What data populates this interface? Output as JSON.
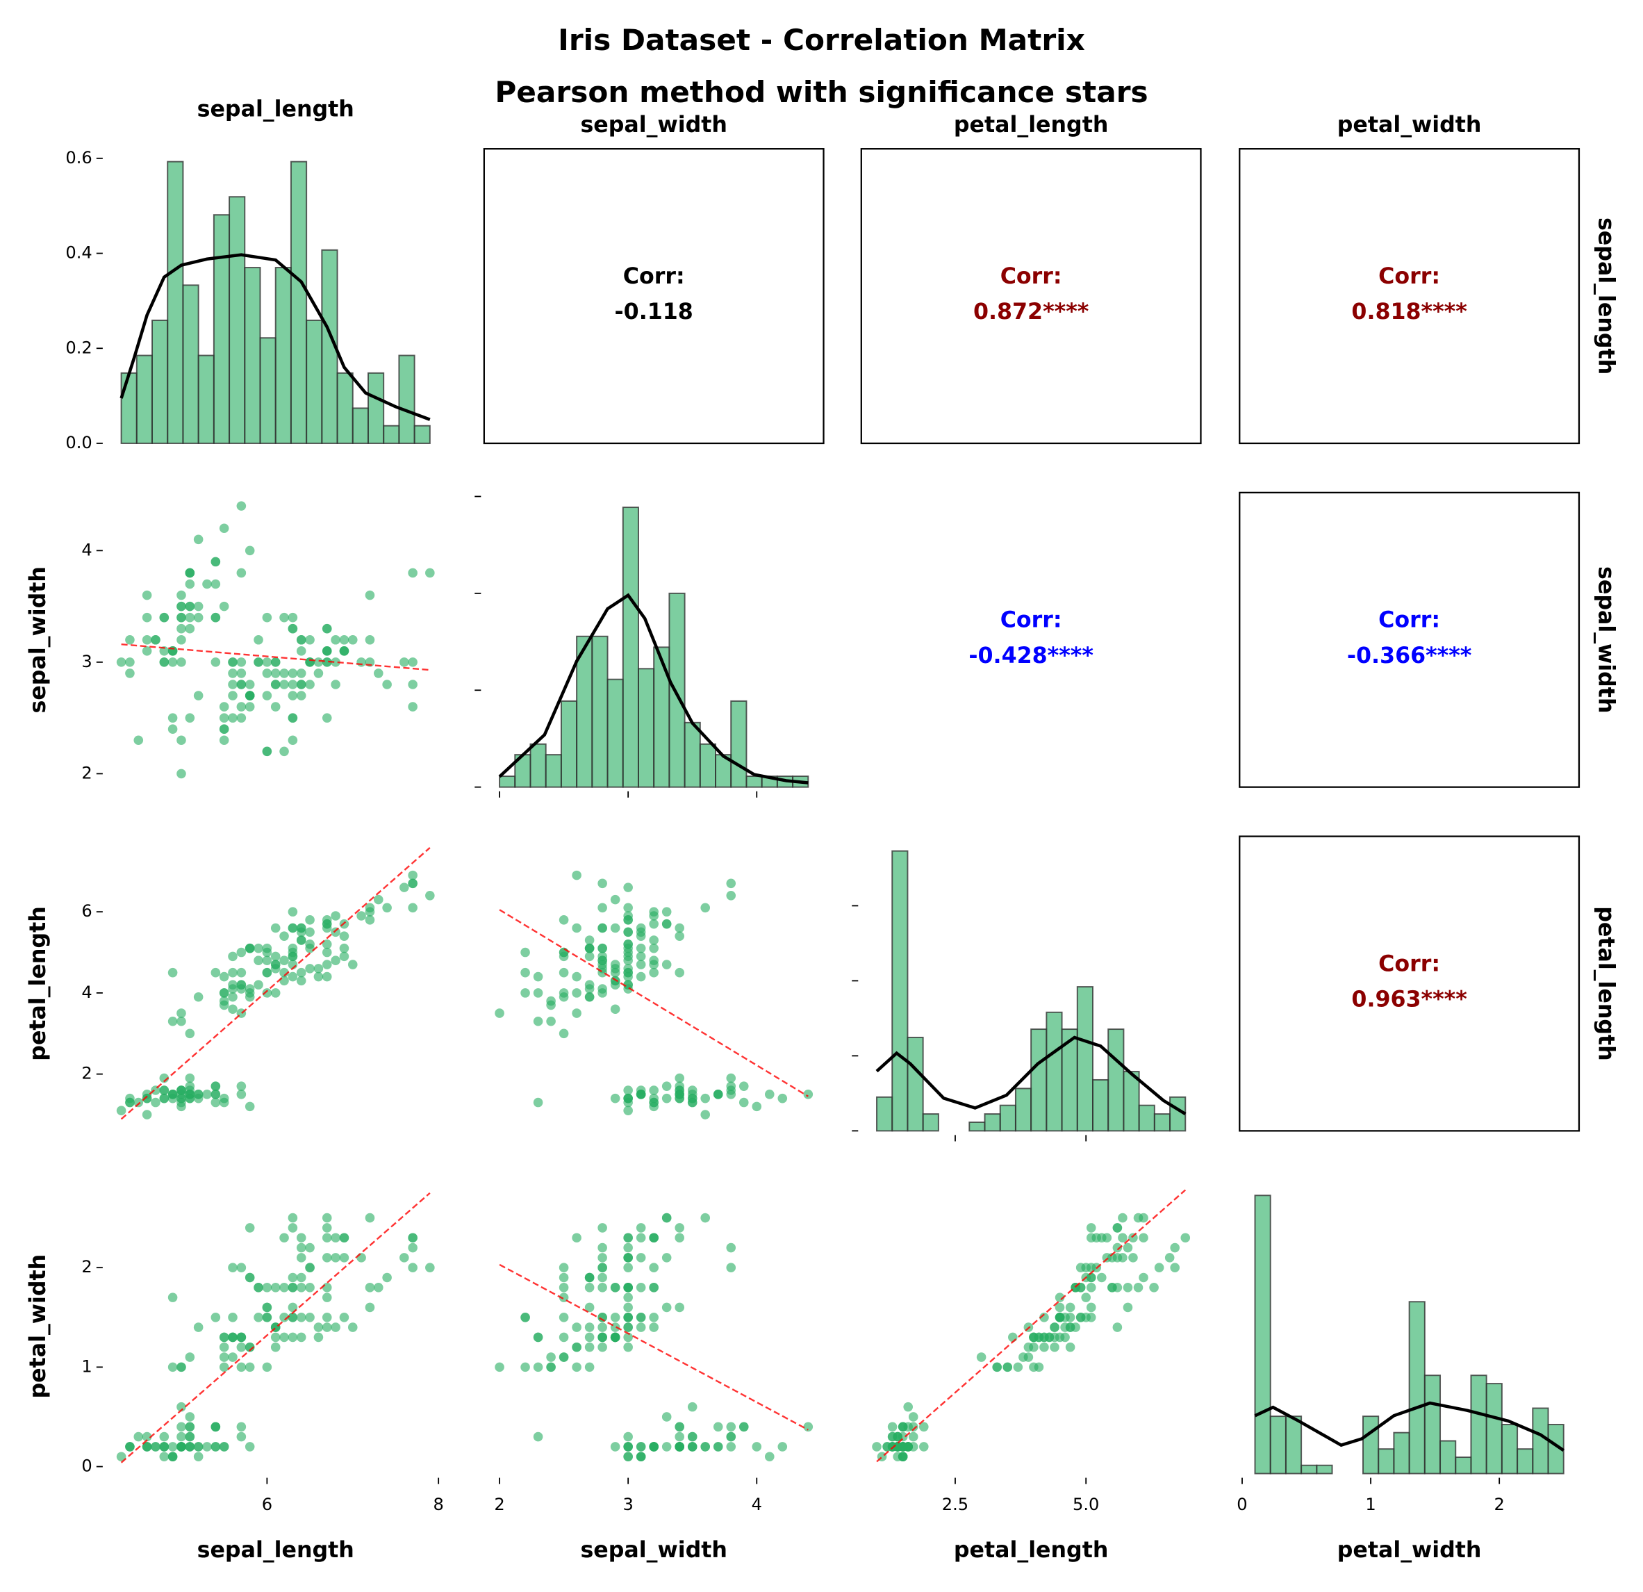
{
  "chart_data": {
    "type": "pairplot",
    "title": "Iris Dataset - Correlation Matrix",
    "subtitle": "Pearson method with significance stars",
    "point_color": "#27ae60",
    "hist_color": "#27ae60",
    "kde_color": "#000000",
    "reg_color": "#ff0000",
    "corr_label": "Corr:",
    "variables": [
      {
        "name": "sepal_length",
        "xlim": [
          4.12,
          8.08
        ],
        "xticks": [
          6,
          8
        ],
        "data": [
          5.1,
          4.9,
          4.7,
          4.6,
          5.0,
          5.4,
          4.6,
          5.0,
          4.4,
          4.9,
          5.4,
          4.8,
          4.8,
          4.3,
          5.8,
          5.7,
          5.4,
          5.1,
          5.7,
          5.1,
          5.4,
          5.1,
          4.6,
          5.1,
          4.8,
          5.0,
          5.0,
          5.2,
          5.2,
          4.7,
          4.8,
          5.4,
          5.2,
          5.5,
          4.9,
          5.0,
          5.5,
          4.9,
          4.4,
          5.1,
          5.0,
          4.5,
          4.4,
          5.0,
          5.1,
          4.8,
          5.1,
          4.6,
          5.3,
          5.0,
          7.0,
          6.4,
          6.9,
          5.5,
          6.5,
          5.7,
          6.3,
          4.9,
          6.6,
          5.2,
          5.0,
          5.9,
          6.0,
          6.1,
          5.6,
          6.7,
          5.6,
          5.8,
          6.2,
          5.6,
          5.9,
          6.1,
          6.3,
          6.1,
          6.4,
          6.6,
          6.8,
          6.7,
          6.0,
          5.7,
          5.5,
          5.5,
          5.8,
          6.0,
          5.4,
          6.0,
          6.7,
          6.3,
          5.6,
          5.5,
          5.5,
          6.1,
          5.8,
          5.0,
          5.6,
          5.7,
          5.7,
          6.2,
          5.1,
          5.7,
          6.3,
          5.8,
          7.1,
          6.3,
          6.5,
          7.6,
          4.9,
          7.3,
          6.7,
          7.2,
          6.5,
          6.4,
          6.8,
          5.7,
          5.8,
          6.4,
          6.5,
          7.7,
          7.7,
          6.0,
          6.9,
          5.6,
          7.7,
          6.3,
          6.7,
          7.2,
          6.2,
          6.1,
          6.4,
          7.2,
          7.4,
          7.9,
          6.4,
          6.3,
          6.1,
          7.7,
          6.3,
          6.4,
          6.0,
          6.9,
          6.7,
          6.9,
          5.8,
          6.8,
          6.7,
          6.7,
          6.3,
          6.5,
          6.2,
          5.9
        ],
        "hist": {
          "bins": [
            4.3,
            4.48,
            4.66,
            4.84,
            5.02,
            5.2,
            5.38,
            5.56,
            5.74,
            5.92,
            6.1,
            6.28,
            6.46,
            6.64,
            6.82,
            7.0,
            7.18,
            7.36,
            7.54,
            7.72,
            7.9
          ],
          "values": [
            0.148,
            0.185,
            0.259,
            0.593,
            0.333,
            0.185,
            0.481,
            0.519,
            0.37,
            0.222,
            0.37,
            0.593,
            0.259,
            0.407,
            0.148,
            0.074,
            0.148,
            0.037,
            0.185,
            0.037
          ],
          "ylim": [
            0,
            0.62
          ],
          "yticks": [
            {
              "value": 0,
              "label": "0.0"
            },
            0.2,
            0.4,
            0.6
          ]
        },
        "kde": {
          "x": [
            4.3,
            4.45,
            4.6,
            4.8,
            5.0,
            5.3,
            5.7,
            6.1,
            6.4,
            6.7,
            6.9,
            7.15,
            7.5,
            7.9
          ],
          "y": [
            0.095,
            0.18,
            0.27,
            0.35,
            0.375,
            0.388,
            0.397,
            0.386,
            0.34,
            0.245,
            0.16,
            0.106,
            0.077,
            0.05
          ]
        }
      },
      {
        "name": "sepal_width",
        "xlim": [
          1.88,
          4.52
        ],
        "xticks": [
          2,
          3,
          4
        ],
        "ylim": [
          1.88,
          4.52
        ],
        "yticks": [
          2,
          3,
          4
        ],
        "data": [
          3.5,
          3.0,
          3.2,
          3.1,
          3.6,
          3.9,
          3.4,
          3.4,
          2.9,
          3.1,
          3.7,
          3.4,
          3.0,
          3.0,
          4.0,
          4.4,
          3.9,
          3.5,
          3.8,
          3.8,
          3.4,
          3.7,
          3.6,
          3.3,
          3.4,
          3.0,
          3.4,
          3.5,
          3.4,
          3.2,
          3.1,
          3.4,
          4.1,
          4.2,
          3.1,
          3.2,
          3.5,
          3.1,
          3.0,
          3.4,
          3.5,
          2.3,
          3.2,
          3.5,
          3.8,
          3.0,
          3.8,
          3.2,
          3.7,
          3.3,
          3.2,
          3.2,
          3.1,
          2.3,
          2.8,
          2.8,
          3.3,
          2.4,
          2.9,
          2.7,
          2.0,
          3.0,
          2.2,
          2.9,
          2.9,
          3.1,
          3.0,
          2.7,
          2.2,
          2.5,
          3.2,
          2.8,
          2.5,
          2.8,
          2.9,
          3.0,
          2.8,
          3.0,
          2.9,
          2.6,
          2.4,
          2.4,
          2.7,
          2.7,
          3.0,
          3.4,
          3.1,
          2.3,
          3.0,
          2.5,
          2.6,
          3.0,
          2.6,
          2.3,
          2.7,
          3.0,
          2.9,
          2.9,
          2.5,
          2.8,
          3.3,
          2.7,
          3.0,
          2.9,
          3.0,
          3.0,
          2.5,
          2.9,
          2.5,
          3.6,
          3.2,
          2.7,
          3.0,
          2.5,
          2.8,
          3.2,
          3.0,
          3.8,
          2.6,
          2.2,
          3.2,
          2.8,
          2.8,
          2.7,
          3.3,
          3.2,
          2.8,
          3.0,
          2.8,
          3.0,
          2.8,
          3.8,
          2.8,
          2.8,
          2.6,
          3.0,
          3.4,
          3.1,
          3.0,
          3.1,
          3.1,
          3.1,
          2.7,
          3.2,
          3.3,
          3.0,
          2.5,
          3.0,
          3.4,
          3.0
        ],
        "hist": {
          "bins": [
            2.0,
            2.12,
            2.24,
            2.36,
            2.48,
            2.6,
            2.72,
            2.84,
            2.96,
            3.08,
            3.2,
            3.32,
            3.44,
            3.56,
            3.68,
            3.8,
            3.92,
            4.04,
            4.16,
            4.28,
            4.4
          ],
          "values": [
            0.056,
            0.167,
            0.222,
            0.167,
            0.444,
            0.778,
            0.778,
            0.556,
            1.444,
            0.611,
            0.722,
            1.0,
            0.333,
            0.222,
            0.167,
            0.444,
            0.056,
            0.056,
            0.056,
            0.056
          ],
          "ylim": [
            0,
            1.52
          ],
          "yticks": [
            0,
            0.5,
            1,
            1.5
          ]
        },
        "kde": {
          "x": [
            2.0,
            2.35,
            2.6,
            2.84,
            3.0,
            3.13,
            3.33,
            3.5,
            3.74,
            3.98,
            4.23,
            4.4
          ],
          "y": [
            0.054,
            0.27,
            0.65,
            0.92,
            0.99,
            0.87,
            0.54,
            0.33,
            0.16,
            0.065,
            0.033,
            0.022
          ]
        }
      },
      {
        "name": "petal_length",
        "xlim": [
          0.705,
          7.195
        ],
        "xticks": [
          2.5,
          {
            "value": 5,
            "label": "5.0"
          }
        ],
        "ylim": [
          0.6,
          7.86
        ],
        "yticks": [
          2,
          4,
          6
        ],
        "data": [
          1.4,
          1.4,
          1.3,
          1.5,
          1.4,
          1.7,
          1.4,
          1.5,
          1.4,
          1.5,
          1.5,
          1.6,
          1.4,
          1.1,
          1.2,
          1.5,
          1.3,
          1.4,
          1.7,
          1.5,
          1.7,
          1.5,
          1.0,
          1.7,
          1.9,
          1.6,
          1.6,
          1.5,
          1.4,
          1.6,
          1.6,
          1.5,
          1.5,
          1.4,
          1.5,
          1.2,
          1.3,
          1.5,
          1.3,
          1.5,
          1.3,
          1.3,
          1.3,
          1.6,
          1.9,
          1.4,
          1.6,
          1.4,
          1.5,
          1.4,
          4.7,
          4.5,
          4.9,
          4.0,
          4.6,
          4.5,
          4.7,
          3.3,
          4.6,
          3.9,
          3.5,
          4.2,
          4.0,
          4.7,
          3.6,
          4.4,
          4.5,
          4.1,
          4.5,
          3.9,
          4.8,
          4.0,
          4.9,
          4.7,
          4.3,
          4.4,
          4.8,
          5.0,
          4.5,
          3.5,
          3.8,
          3.7,
          3.9,
          5.1,
          4.5,
          4.5,
          4.7,
          4.4,
          4.1,
          4.0,
          4.4,
          4.6,
          4.0,
          3.3,
          4.2,
          4.2,
          4.2,
          4.3,
          3.0,
          4.1,
          6.0,
          5.1,
          5.9,
          5.6,
          5.8,
          6.6,
          4.5,
          6.3,
          5.8,
          6.1,
          5.1,
          5.3,
          5.5,
          5.0,
          5.1,
          5.3,
          5.5,
          6.7,
          6.9,
          5.0,
          5.7,
          4.9,
          6.7,
          4.9,
          5.7,
          6.0,
          4.8,
          4.9,
          5.6,
          5.8,
          6.1,
          6.4,
          5.6,
          5.1,
          5.6,
          6.1,
          5.6,
          5.5,
          4.8,
          5.4,
          5.6,
          5.1,
          5.1,
          5.9,
          5.7,
          5.2,
          5.0,
          5.2,
          5.4,
          5.1
        ],
        "hist": {
          "bins": [
            1.0,
            1.295,
            1.59,
            1.885,
            2.18,
            2.475,
            2.77,
            3.065,
            3.36,
            3.655,
            3.95,
            4.245,
            4.54,
            4.835,
            5.13,
            5.425,
            5.72,
            6.015,
            6.31,
            6.605,
            6.9
          ],
          "values": [
            0.09,
            0.746,
            0.249,
            0.045,
            0,
            0,
            0.023,
            0.045,
            0.068,
            0.113,
            0.271,
            0.316,
            0.271,
            0.384,
            0.136,
            0.271,
            0.158,
            0.068,
            0.045,
            0.09
          ],
          "ylim": [
            0,
            0.785
          ],
          "yticks": [
            0,
            0.2,
            0.4,
            0.6
          ]
        },
        "kde": {
          "x": [
            1.0,
            1.38,
            1.64,
            2.28,
            2.88,
            3.48,
            4.08,
            4.78,
            5.28,
            5.88,
            6.48,
            6.9
          ],
          "y": [
            0.159,
            0.207,
            0.179,
            0.087,
            0.061,
            0.095,
            0.179,
            0.249,
            0.226,
            0.151,
            0.081,
            0.045
          ]
        }
      },
      {
        "name": "petal_width",
        "xlim": [
          -0.02,
          2.62
        ],
        "xticks": [
          0,
          1,
          2
        ],
        "ylim": [
          -0.07,
          2.89
        ],
        "yticks": [
          0,
          1,
          2
        ],
        "data": [
          0.2,
          0.2,
          0.2,
          0.2,
          0.2,
          0.4,
          0.3,
          0.2,
          0.2,
          0.1,
          0.2,
          0.2,
          0.1,
          0.1,
          0.2,
          0.4,
          0.4,
          0.3,
          0.3,
          0.3,
          0.2,
          0.4,
          0.2,
          0.5,
          0.2,
          0.2,
          0.4,
          0.2,
          0.2,
          0.2,
          0.2,
          0.4,
          0.1,
          0.2,
          0.1,
          0.2,
          0.2,
          0.1,
          0.2,
          0.2,
          0.3,
          0.3,
          0.2,
          0.6,
          0.4,
          0.3,
          0.2,
          0.2,
          0.2,
          0.2,
          1.4,
          1.5,
          1.5,
          1.3,
          1.5,
          1.3,
          1.6,
          1.0,
          1.3,
          1.4,
          1.0,
          1.5,
          1.0,
          1.4,
          1.3,
          1.4,
          1.5,
          1.0,
          1.5,
          1.1,
          1.8,
          1.3,
          1.5,
          1.2,
          1.3,
          1.4,
          1.4,
          1.7,
          1.5,
          1.0,
          1.1,
          1.0,
          1.2,
          1.6,
          1.5,
          1.6,
          1.5,
          1.3,
          1.3,
          1.3,
          1.2,
          1.4,
          1.2,
          1.0,
          1.3,
          1.2,
          1.3,
          1.3,
          1.1,
          1.3,
          2.5,
          1.9,
          2.1,
          1.8,
          2.2,
          2.1,
          1.7,
          1.8,
          1.8,
          2.5,
          2.0,
          1.9,
          2.1,
          2.0,
          2.4,
          2.3,
          1.8,
          2.2,
          2.3,
          1.5,
          2.3,
          2.0,
          2.0,
          1.8,
          2.1,
          1.8,
          1.8,
          1.8,
          2.1,
          1.6,
          1.9,
          2.0,
          2.2,
          1.5,
          1.4,
          2.3,
          2.4,
          1.8,
          1.8,
          2.1,
          2.4,
          2.3,
          1.9,
          2.3,
          2.5,
          2.3,
          1.9,
          2.0,
          2.3,
          1.8
        ],
        "hist": {
          "bins": [
            0.1,
            0.22,
            0.34,
            0.46,
            0.58,
            0.7,
            0.82,
            0.94,
            1.06,
            1.18,
            1.3,
            1.42,
            1.54,
            1.66,
            1.78,
            1.9,
            2.02,
            2.14,
            2.26,
            2.38,
            2.5
          ],
          "values": [
            1.889,
            0.389,
            0.389,
            0.056,
            0.056,
            0,
            0,
            0.389,
            0.167,
            0.278,
            1.167,
            0.667,
            0.222,
            0.111,
            0.667,
            0.611,
            0.333,
            0.167,
            0.444,
            0.333
          ],
          "ylim": [
            0,
            2.0
          ]
        },
        "kde": {
          "x": [
            0.1,
            0.24,
            0.44,
            0.77,
            0.93,
            1.18,
            1.46,
            1.75,
            2.07,
            2.32,
            2.5
          ],
          "y": [
            0.393,
            0.45,
            0.357,
            0.193,
            0.236,
            0.393,
            0.479,
            0.429,
            0.357,
            0.264,
            0.157
          ]
        }
      }
    ],
    "regressions": {
      "pairs": [
        [
          1,
          0
        ],
        [
          2,
          0
        ],
        [
          2,
          1
        ],
        [
          3,
          0
        ],
        [
          3,
          1
        ],
        [
          3,
          2
        ]
      ],
      "x": [
        [
          4.3,
          7.9
        ],
        [
          4.3,
          7.9
        ],
        [
          2.0,
          4.4
        ],
        [
          4.3,
          7.9
        ],
        [
          2.0,
          4.4
        ],
        [
          1.0,
          6.9
        ]
      ],
      "y": [
        [
          3.16,
          2.93
        ],
        [
          0.89,
          7.58
        ],
        [
          6.05,
          1.45
        ],
        [
          0.04,
          2.75
        ],
        [
          2.03,
          0.37
        ],
        [
          0.05,
          2.78
        ]
      ]
    },
    "correlations": {
      "pairs": [
        [
          0,
          1
        ],
        [
          0,
          2
        ],
        [
          0,
          3
        ],
        [
          1,
          2
        ],
        [
          1,
          3
        ],
        [
          2,
          3
        ]
      ],
      "values": [
        -0.118,
        0.872,
        0.818,
        -0.428,
        -0.366,
        0.963
      ],
      "value_labels": [
        "-0.118",
        "0.872****",
        "0.818****",
        "-0.428****",
        "-0.366****",
        "0.963****"
      ],
      "colors": [
        "#000000",
        "#8b0000",
        "#8b0000",
        "#0000ff",
        "#0000ff",
        "#8b0000"
      ],
      "framed": [
        true,
        true,
        true,
        false,
        true,
        true
      ]
    }
  }
}
